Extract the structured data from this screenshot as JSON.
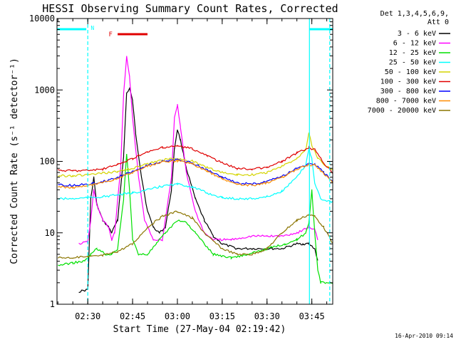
{
  "chart_data": {
    "type": "line",
    "title": "HESSI Observing Summary Count Rates, Corrected",
    "xlabel": "Start Time (27-May-04 02:19:42)",
    "ylabel": "Corrected Count Rate (s⁻¹ detector⁻¹)",
    "y_scale": "log",
    "ylim": [
      1,
      10000
    ],
    "xlim": [
      "02:19:42",
      "03:52:00"
    ],
    "x_ticks": [
      "02:30",
      "02:45",
      "03:00",
      "03:15",
      "03:30",
      "03:45"
    ],
    "y_ticks": [
      "1",
      "10",
      "100",
      "1000",
      "10000"
    ],
    "footer": "16-Apr-2010 09:14",
    "legend": {
      "placement": "right",
      "header": [
        "Det 1,3,4,5,6,9,",
        "Att 0"
      ]
    },
    "flags": [
      {
        "label": "N",
        "color": "#00ffff"
      },
      {
        "label": "F",
        "color": "#e00000"
      }
    ],
    "series": [
      {
        "name": "3 - 6 keV",
        "color": "#000000",
        "points": [
          [
            "02:27",
            1.5
          ],
          [
            "02:30",
            1.6
          ],
          [
            "02:31",
            30
          ],
          [
            "02:32",
            60
          ],
          [
            "02:33",
            25
          ],
          [
            "02:35",
            15
          ],
          [
            "02:37",
            12
          ],
          [
            "02:38",
            10
          ],
          [
            "02:40",
            15
          ],
          [
            "02:42",
            120
          ],
          [
            "02:43",
            900
          ],
          [
            "02:44",
            1050
          ],
          [
            "02:45",
            700
          ],
          [
            "02:46",
            250
          ],
          [
            "02:48",
            60
          ],
          [
            "02:50",
            20
          ],
          [
            "02:52",
            12
          ],
          [
            "02:54",
            10
          ],
          [
            "02:56",
            12
          ],
          [
            "02:58",
            40
          ],
          [
            "02:59",
            150
          ],
          [
            "03:00",
            280
          ],
          [
            "03:01",
            200
          ],
          [
            "03:03",
            80
          ],
          [
            "03:06",
            30
          ],
          [
            "03:09",
            15
          ],
          [
            "03:12",
            9
          ],
          [
            "03:15",
            7
          ],
          [
            "03:20",
            6
          ],
          [
            "03:25",
            6
          ],
          [
            "03:30",
            6
          ],
          [
            "03:35",
            6
          ],
          [
            "03:40",
            7
          ],
          [
            "03:42",
            7
          ],
          [
            "03:44",
            7
          ],
          [
            "03:46",
            6
          ],
          [
            "03:47",
            4
          ]
        ]
      },
      {
        "name": "6 - 12 keV",
        "color": "#ff00ff",
        "points": [
          [
            "02:27",
            7
          ],
          [
            "02:30",
            7.5
          ],
          [
            "02:31",
            15
          ],
          [
            "02:32",
            40
          ],
          [
            "02:33",
            25
          ],
          [
            "02:35",
            15
          ],
          [
            "02:37",
            12
          ],
          [
            "02:38",
            8
          ],
          [
            "02:39",
            10
          ],
          [
            "02:41",
            80
          ],
          [
            "02:42",
            900
          ],
          [
            "02:43",
            2900
          ],
          [
            "02:44",
            1500
          ],
          [
            "02:45",
            400
          ],
          [
            "02:47",
            60
          ],
          [
            "02:49",
            15
          ],
          [
            "02:52",
            8
          ],
          [
            "02:55",
            8
          ],
          [
            "02:58",
            60
          ],
          [
            "02:59",
            400
          ],
          [
            "03:00",
            620
          ],
          [
            "03:01",
            300
          ],
          [
            "03:03",
            70
          ],
          [
            "03:06",
            20
          ],
          [
            "03:09",
            10
          ],
          [
            "03:12",
            8
          ],
          [
            "03:18",
            8
          ],
          [
            "03:25",
            9
          ],
          [
            "03:30",
            9
          ],
          [
            "03:35",
            9
          ],
          [
            "03:40",
            10
          ],
          [
            "03:44",
            12
          ],
          [
            "03:46",
            11
          ],
          [
            "03:47",
            8
          ]
        ]
      },
      {
        "name": "12 - 25 keV",
        "color": "#00e000",
        "points": [
          [
            "02:20",
            3.5
          ],
          [
            "02:25",
            3.8
          ],
          [
            "02:29",
            4
          ],
          [
            "02:31",
            5
          ],
          [
            "02:33",
            6
          ],
          [
            "02:36",
            5
          ],
          [
            "02:38",
            5
          ],
          [
            "02:40",
            6
          ],
          [
            "02:42",
            30
          ],
          [
            "02:43",
            125
          ],
          [
            "02:44",
            40
          ],
          [
            "02:45",
            8
          ],
          [
            "02:47",
            5
          ],
          [
            "02:50",
            5
          ],
          [
            "02:53",
            7
          ],
          [
            "02:56",
            10
          ],
          [
            "03:00",
            15
          ],
          [
            "03:03",
            14
          ],
          [
            "03:06",
            10
          ],
          [
            "03:09",
            7
          ],
          [
            "03:12",
            5
          ],
          [
            "03:18",
            4.5
          ],
          [
            "03:24",
            5
          ],
          [
            "03:30",
            6
          ],
          [
            "03:36",
            7
          ],
          [
            "03:40",
            8
          ],
          [
            "03:43",
            10
          ],
          [
            "03:44",
            14
          ],
          [
            "03:45",
            40
          ],
          [
            "03:46",
            10
          ],
          [
            "03:47",
            3
          ],
          [
            "03:48",
            2
          ],
          [
            "03:52",
            2
          ]
        ]
      },
      {
        "name": "25 - 50 keV",
        "color": "#00ffff",
        "points": [
          [
            "02:20",
            30
          ],
          [
            "02:25",
            30
          ],
          [
            "02:30",
            31
          ],
          [
            "02:35",
            32
          ],
          [
            "02:40",
            34
          ],
          [
            "02:45",
            36
          ],
          [
            "02:50",
            40
          ],
          [
            "02:55",
            45
          ],
          [
            "03:00",
            48
          ],
          [
            "03:05",
            44
          ],
          [
            "03:10",
            36
          ],
          [
            "03:15",
            31
          ],
          [
            "03:20",
            30
          ],
          [
            "03:25",
            30
          ],
          [
            "03:30",
            32
          ],
          [
            "03:35",
            38
          ],
          [
            "03:40",
            60
          ],
          [
            "03:43",
            90
          ],
          [
            "03:44",
            150
          ],
          [
            "03:45",
            110
          ],
          [
            "03:46",
            50
          ],
          [
            "03:48",
            30
          ],
          [
            "03:52",
            27
          ]
        ]
      },
      {
        "name": "50 - 100 keV",
        "color": "#d4d400",
        "points": [
          [
            "02:20",
            63
          ],
          [
            "02:25",
            63
          ],
          [
            "02:30",
            65
          ],
          [
            "02:35",
            68
          ],
          [
            "02:40",
            72
          ],
          [
            "02:45",
            80
          ],
          [
            "02:50",
            92
          ],
          [
            "02:55",
            105
          ],
          [
            "03:00",
            110
          ],
          [
            "03:05",
            100
          ],
          [
            "03:10",
            82
          ],
          [
            "03:15",
            70
          ],
          [
            "03:20",
            65
          ],
          [
            "03:25",
            65
          ],
          [
            "03:30",
            70
          ],
          [
            "03:35",
            85
          ],
          [
            "03:40",
            110
          ],
          [
            "03:43",
            150
          ],
          [
            "03:44",
            260
          ],
          [
            "03:45",
            170
          ],
          [
            "03:47",
            110
          ],
          [
            "03:50",
            85
          ],
          [
            "03:52",
            75
          ]
        ]
      },
      {
        "name": "100 - 300 keV",
        "color": "#e00000",
        "points": [
          [
            "02:20",
            75
          ],
          [
            "02:25",
            74
          ],
          [
            "02:30",
            75
          ],
          [
            "02:35",
            78
          ],
          [
            "02:40",
            90
          ],
          [
            "02:45",
            110
          ],
          [
            "02:50",
            135
          ],
          [
            "02:55",
            155
          ],
          [
            "03:00",
            165
          ],
          [
            "03:05",
            150
          ],
          [
            "03:10",
            120
          ],
          [
            "03:15",
            95
          ],
          [
            "03:20",
            80
          ],
          [
            "03:25",
            78
          ],
          [
            "03:30",
            82
          ],
          [
            "03:35",
            100
          ],
          [
            "03:40",
            130
          ],
          [
            "03:44",
            155
          ],
          [
            "03:46",
            145
          ],
          [
            "03:49",
            95
          ],
          [
            "03:52",
            70
          ]
        ]
      },
      {
        "name": "300 - 800 keV",
        "color": "#0000ff",
        "points": [
          [
            "02:20",
            47
          ],
          [
            "02:25",
            46
          ],
          [
            "02:30",
            48
          ],
          [
            "02:35",
            52
          ],
          [
            "02:40",
            60
          ],
          [
            "02:45",
            72
          ],
          [
            "02:50",
            88
          ],
          [
            "02:55",
            100
          ],
          [
            "03:00",
            105
          ],
          [
            "03:05",
            95
          ],
          [
            "03:10",
            76
          ],
          [
            "03:15",
            60
          ],
          [
            "03:20",
            50
          ],
          [
            "03:25",
            48
          ],
          [
            "03:30",
            52
          ],
          [
            "03:35",
            62
          ],
          [
            "03:40",
            80
          ],
          [
            "03:44",
            92
          ],
          [
            "03:46",
            90
          ],
          [
            "03:49",
            70
          ],
          [
            "03:52",
            52
          ]
        ]
      },
      {
        "name": "800 - 7000 keV",
        "color": "#ff8c00",
        "points": [
          [
            "02:20",
            44
          ],
          [
            "02:25",
            43
          ],
          [
            "02:30",
            45
          ],
          [
            "02:35",
            50
          ],
          [
            "02:40",
            58
          ],
          [
            "02:45",
            70
          ],
          [
            "02:50",
            85
          ],
          [
            "02:55",
            98
          ],
          [
            "03:00",
            102
          ],
          [
            "03:05",
            92
          ],
          [
            "03:10",
            73
          ],
          [
            "03:15",
            57
          ],
          [
            "03:20",
            48
          ],
          [
            "03:25",
            46
          ],
          [
            "03:30",
            50
          ],
          [
            "03:35",
            60
          ],
          [
            "03:40",
            78
          ],
          [
            "03:44",
            90
          ],
          [
            "03:46",
            88
          ],
          [
            "03:49",
            68
          ],
          [
            "03:52",
            50
          ]
        ]
      },
      {
        "name": "7000 - 20000 keV",
        "color": "#8b7500",
        "points": [
          [
            "02:20",
            4.5
          ],
          [
            "02:25",
            4.5
          ],
          [
            "02:30",
            4.6
          ],
          [
            "02:35",
            4.8
          ],
          [
            "02:40",
            5.5
          ],
          [
            "02:45",
            7
          ],
          [
            "02:50",
            12
          ],
          [
            "02:55",
            17
          ],
          [
            "03:00",
            20
          ],
          [
            "03:05",
            16
          ],
          [
            "03:10",
            9
          ],
          [
            "03:15",
            6
          ],
          [
            "03:20",
            5
          ],
          [
            "03:25",
            5
          ],
          [
            "03:30",
            6
          ],
          [
            "03:35",
            10
          ],
          [
            "03:40",
            15
          ],
          [
            "03:44",
            18
          ],
          [
            "03:46",
            17
          ],
          [
            "03:49",
            12
          ],
          [
            "03:52",
            7
          ]
        ]
      }
    ]
  }
}
